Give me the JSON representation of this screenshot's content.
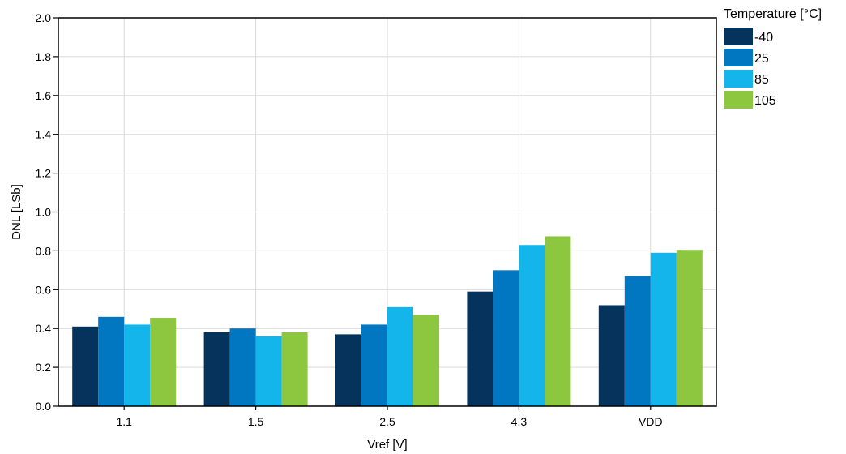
{
  "chart_data": {
    "type": "bar",
    "title": "",
    "xlabel": "Vref [V]",
    "ylabel": "DNL [LSb]",
    "ylim": [
      0,
      2.0
    ],
    "yticks": [
      "0.0",
      "0.2",
      "0.4",
      "0.6",
      "0.8",
      "1.0",
      "1.2",
      "1.4",
      "1.6",
      "1.8",
      "2.0"
    ],
    "categories": [
      "1.1",
      "1.5",
      "2.5",
      "4.3",
      "VDD"
    ],
    "grid": true,
    "legend": {
      "title": "Temperature [°C]",
      "placement": "right"
    },
    "series": [
      {
        "name": "-40",
        "color": "#06335c",
        "values": [
          0.41,
          0.38,
          0.37,
          0.59,
          0.52
        ]
      },
      {
        "name": "25",
        "color": "#0077c0",
        "values": [
          0.46,
          0.4,
          0.42,
          0.7,
          0.67
        ]
      },
      {
        "name": "85",
        "color": "#14b5ea",
        "values": [
          0.42,
          0.36,
          0.51,
          0.83,
          0.79
        ]
      },
      {
        "name": "105",
        "color": "#8dc63f",
        "values": [
          0.455,
          0.38,
          0.47,
          0.875,
          0.805
        ]
      }
    ]
  }
}
